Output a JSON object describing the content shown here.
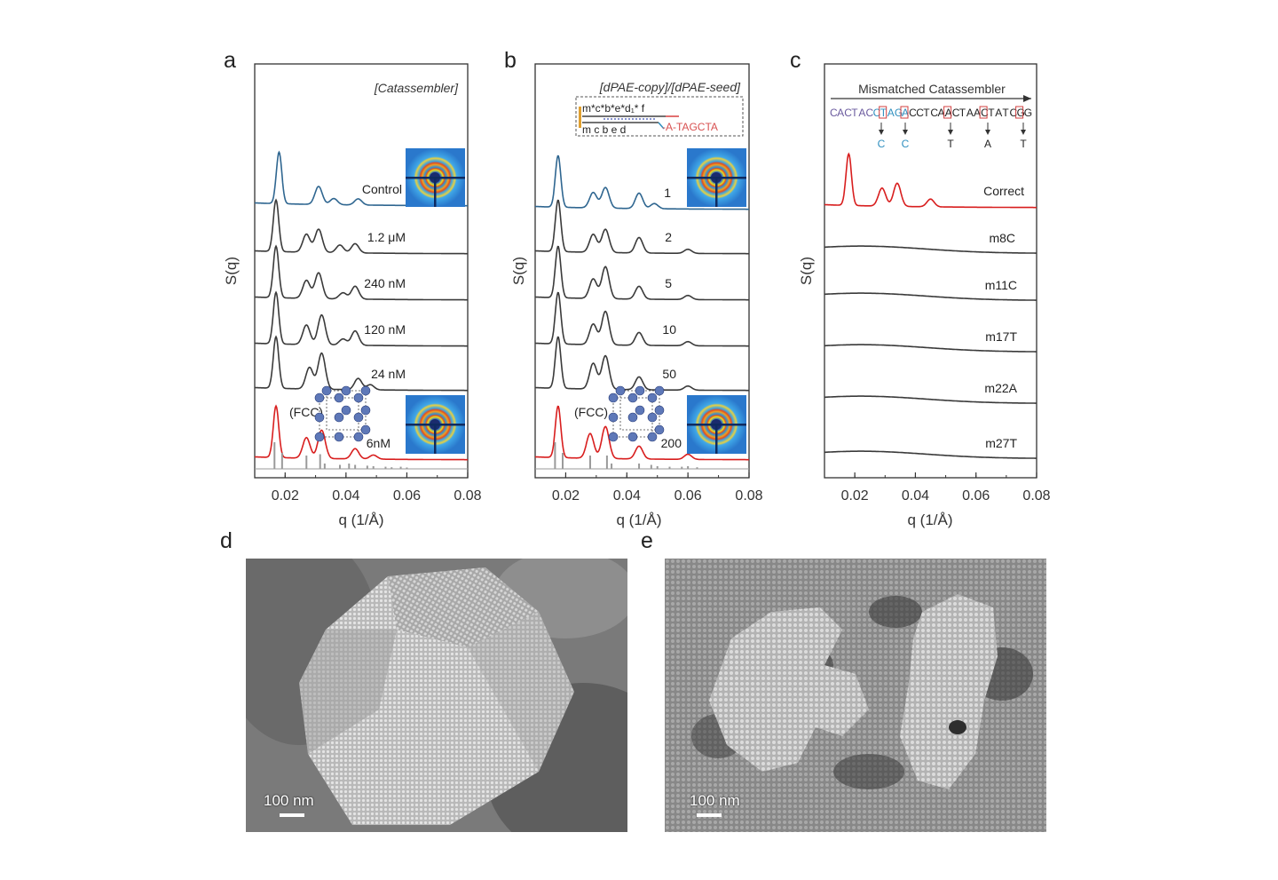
{
  "panels": {
    "a": {
      "label": "a",
      "header": "[Catassembler]"
    },
    "b": {
      "label": "b",
      "header": "[dPAE-copy]/[dPAE-seed]",
      "strand_top": "m*c*b*e*d₁* f",
      "strand_bottom": "m c b e d",
      "strand_tail": "-A-TAGCTA"
    },
    "c": {
      "label": "c",
      "header": "Mismatched Catassembler",
      "sequence": "CACTACCTAGACCTCAACTAACTATCGG",
      "mutations": [
        "C",
        "C",
        "T",
        "A",
        "T"
      ]
    },
    "d": {
      "label": "d",
      "scalebar": "100 nm"
    },
    "e": {
      "label": "e",
      "scalebar": "100 nm"
    }
  },
  "fcc_label": "(FCC)",
  "colors": {
    "control": "#2f6690",
    "fcc": "#d81e1e",
    "curve": "#3a3a3a",
    "ref": "#9a9a9a",
    "mismatch_blue": "#2f8fbf",
    "mismatch_red": "#d24040"
  },
  "chart_data": [
    {
      "type": "line",
      "panel": "a",
      "xlabel": "q (1/Å)",
      "ylabel": "S(q)",
      "xlim": [
        0.01,
        0.08
      ],
      "xticks": [
        "0.02",
        "0.04",
        "0.06",
        "0.08"
      ],
      "series": [
        {
          "name": "Control",
          "peaks": [
            [
              0.018,
              1.0
            ],
            [
              0.031,
              0.35
            ],
            [
              0.036,
              0.12
            ],
            [
              0.044,
              0.12
            ]
          ]
        },
        {
          "name": "1.2 μM",
          "peaks": [
            [
              0.017,
              1.0
            ],
            [
              0.027,
              0.35
            ],
            [
              0.031,
              0.45
            ],
            [
              0.038,
              0.15
            ],
            [
              0.043,
              0.18
            ]
          ]
        },
        {
          "name": "240 nM",
          "peaks": [
            [
              0.017,
              1.0
            ],
            [
              0.027,
              0.35
            ],
            [
              0.031,
              0.5
            ],
            [
              0.039,
              0.12
            ],
            [
              0.043,
              0.25
            ]
          ]
        },
        {
          "name": "120 nM",
          "peaks": [
            [
              0.017,
              1.0
            ],
            [
              0.027,
              0.38
            ],
            [
              0.032,
              0.58
            ],
            [
              0.039,
              0.12
            ],
            [
              0.043,
              0.28
            ]
          ]
        },
        {
          "name": "24 nM",
          "peaks": [
            [
              0.017,
              1.0
            ],
            [
              0.028,
              0.42
            ],
            [
              0.032,
              0.7
            ],
            [
              0.044,
              0.22
            ],
            [
              0.048,
              0.1
            ]
          ]
        },
        {
          "name": "6nM",
          "peaks": [
            [
              0.017,
              1.0
            ],
            [
              0.027,
              0.4
            ],
            [
              0.032,
              0.55
            ],
            [
              0.043,
              0.2
            ],
            [
              0.049,
              0.08
            ]
          ]
        }
      ],
      "reference_fcc": [
        [
          0.0165,
          1.0
        ],
        [
          0.019,
          0.6
        ],
        [
          0.027,
          0.5
        ],
        [
          0.0315,
          0.55
        ],
        [
          0.033,
          0.2
        ],
        [
          0.038,
          0.15
        ],
        [
          0.041,
          0.2
        ],
        [
          0.043,
          0.15
        ],
        [
          0.047,
          0.12
        ],
        [
          0.049,
          0.1
        ],
        [
          0.053,
          0.08
        ],
        [
          0.055,
          0.06
        ],
        [
          0.058,
          0.08
        ],
        [
          0.06,
          0.05
        ]
      ]
    },
    {
      "type": "line",
      "panel": "b",
      "xlabel": "q (1/Å)",
      "ylabel": "S(q)",
      "xlim": [
        0.01,
        0.08
      ],
      "xticks": [
        "0.02",
        "0.04",
        "0.06",
        "0.08"
      ],
      "series": [
        {
          "name": "1",
          "peaks": [
            [
              0.0175,
              1.0
            ],
            [
              0.029,
              0.3
            ],
            [
              0.033,
              0.4
            ],
            [
              0.044,
              0.3
            ],
            [
              0.049,
              0.1
            ]
          ]
        },
        {
          "name": "2",
          "peaks": [
            [
              0.0175,
              1.0
            ],
            [
              0.029,
              0.35
            ],
            [
              0.033,
              0.45
            ],
            [
              0.044,
              0.3
            ],
            [
              0.06,
              0.08
            ]
          ]
        },
        {
          "name": "5",
          "peaks": [
            [
              0.0175,
              1.0
            ],
            [
              0.029,
              0.38
            ],
            [
              0.033,
              0.62
            ],
            [
              0.044,
              0.25
            ],
            [
              0.06,
              0.08
            ]
          ]
        },
        {
          "name": "10",
          "peaks": [
            [
              0.0175,
              1.0
            ],
            [
              0.029,
              0.4
            ],
            [
              0.033,
              0.65
            ],
            [
              0.044,
              0.25
            ],
            [
              0.06,
              0.08
            ]
          ]
        },
        {
          "name": "50",
          "peaks": [
            [
              0.0175,
              1.0
            ],
            [
              0.029,
              0.5
            ],
            [
              0.033,
              0.65
            ],
            [
              0.044,
              0.25
            ],
            [
              0.06,
              0.08
            ]
          ]
        },
        {
          "name": "200",
          "peaks": [
            [
              0.0175,
              1.0
            ],
            [
              0.028,
              0.48
            ],
            [
              0.033,
              0.62
            ],
            [
              0.044,
              0.25
            ],
            [
              0.06,
              0.1
            ]
          ]
        }
      ],
      "reference_fcc": [
        [
          0.0165,
          1.0
        ],
        [
          0.019,
          0.6
        ],
        [
          0.028,
          0.5
        ],
        [
          0.0335,
          0.5
        ],
        [
          0.035,
          0.2
        ],
        [
          0.044,
          0.2
        ],
        [
          0.048,
          0.15
        ],
        [
          0.05,
          0.1
        ],
        [
          0.054,
          0.08
        ],
        [
          0.058,
          0.08
        ],
        [
          0.06,
          0.1
        ],
        [
          0.063,
          0.06
        ]
      ]
    },
    {
      "type": "line",
      "panel": "c",
      "xlabel": "q (1/Å)",
      "ylabel": "S(q)",
      "xlim": [
        0.01,
        0.08
      ],
      "xticks": [
        "0.02",
        "0.04",
        "0.06",
        "0.08"
      ],
      "series": [
        {
          "name": "Correct",
          "peaks": [
            [
              0.018,
              1.0
            ],
            [
              0.029,
              0.35
            ],
            [
              0.034,
              0.45
            ],
            [
              0.045,
              0.15
            ]
          ]
        },
        {
          "name": "m8C",
          "peaks": []
        },
        {
          "name": "m11C",
          "peaks": []
        },
        {
          "name": "m17T",
          "peaks": []
        },
        {
          "name": "m22A",
          "peaks": []
        },
        {
          "name": "m27T",
          "peaks": []
        }
      ]
    }
  ]
}
